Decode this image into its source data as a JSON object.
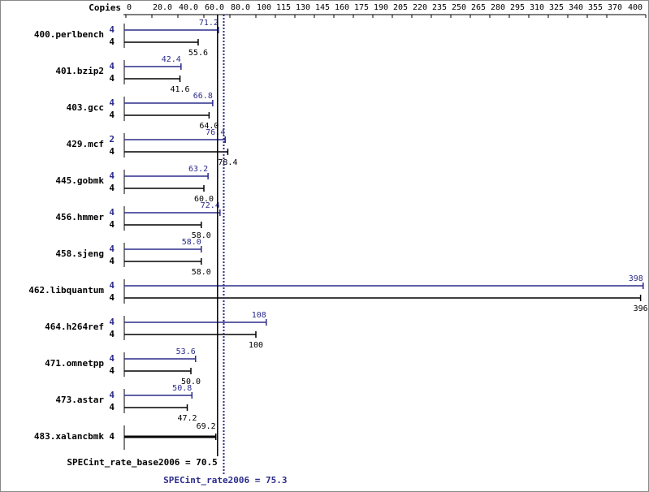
{
  "chart_data": {
    "type": "bar",
    "orientation": "horizontal",
    "copies_label": "Copies",
    "categories": [
      "400.perlbench",
      "401.bzip2",
      "403.gcc",
      "429.mcf",
      "445.gobmk",
      "456.hmmer",
      "458.sjeng",
      "462.libquantum",
      "464.h264ref",
      "471.omnetpp",
      "473.astar",
      "483.xalancbmk"
    ],
    "series": [
      {
        "name": "SPECint_rate2006",
        "color": "#2b2b8c",
        "copies": [
          4,
          4,
          4,
          2,
          4,
          4,
          4,
          4,
          4,
          4,
          4,
          null
        ],
        "values": [
          71.2,
          42.4,
          66.8,
          76.4,
          63.2,
          72.4,
          58.0,
          398,
          108,
          53.6,
          50.8,
          null
        ],
        "value_labels": [
          "71.2",
          "42.4",
          "66.8",
          "76.4",
          "63.2",
          "72.4",
          "58.0",
          "398",
          "108",
          "53.6",
          "50.8",
          null
        ]
      },
      {
        "name": "SPECint_rate_base2006",
        "color": "#000000",
        "copies": [
          4,
          4,
          4,
          4,
          4,
          4,
          4,
          4,
          4,
          4,
          4,
          4
        ],
        "values": [
          55.6,
          41.6,
          64.0,
          78.4,
          60.0,
          58.0,
          58.0,
          396,
          100,
          50.0,
          47.2,
          69.2
        ],
        "value_labels": [
          "55.6",
          "41.6",
          "64.0",
          "78.4",
          "60.0",
          "58.0",
          "58.0",
          "396",
          "100",
          "50.0",
          "47.2",
          "69.2"
        ]
      }
    ],
    "xlim": [
      0,
      400
    ],
    "xticks": [
      0,
      {
        "value": 20,
        "label": "20.0"
      },
      {
        "value": 40,
        "label": "40.0"
      },
      {
        "value": 60,
        "label": "60.0"
      },
      {
        "value": 80,
        "label": "80.0"
      },
      100,
      115,
      130,
      145,
      160,
      175,
      190,
      205,
      220,
      235,
      250,
      265,
      280,
      295,
      310,
      325,
      340,
      355,
      370,
      400
    ],
    "base_metric": 70.5,
    "base_metric_label": "SPECint_rate_base2006 = 70.5",
    "peak_metric": 75.3,
    "peak_metric_label": "SPECint_rate2006 = 75.3"
  }
}
